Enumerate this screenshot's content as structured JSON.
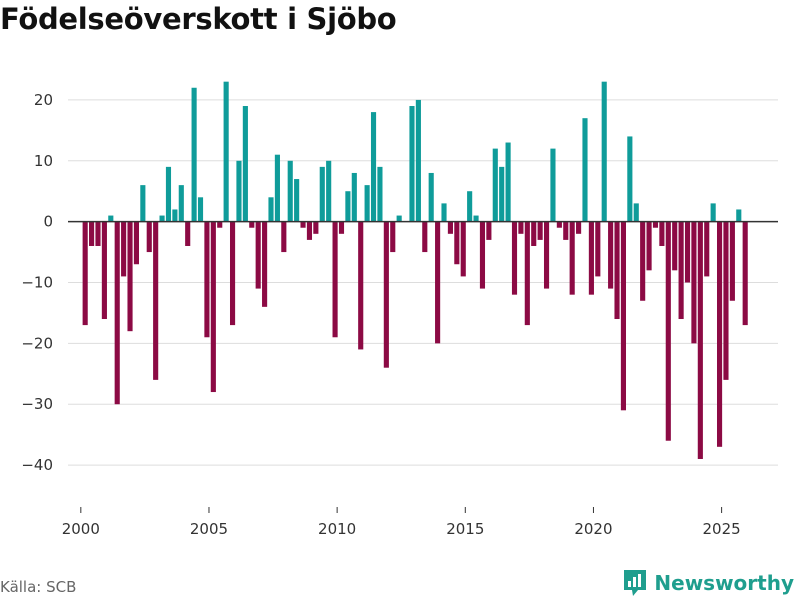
{
  "title": "Födelseöverskott i Sjöbo",
  "source": "Källa: SCB",
  "brand": {
    "name": "Newsworthy",
    "icon": "newsworthy-logo-icon"
  },
  "colors": {
    "positive": "#0f9c9a",
    "negative": "#8c0a44",
    "grid": "#dddddd",
    "zero_line": "#333333",
    "brand": "#1f9e8e"
  },
  "chart_data": {
    "type": "bar",
    "title": "Födelseöverskott i Sjöbo",
    "xlabel": "",
    "ylabel": "",
    "ylim": [
      -45,
      25
    ],
    "y_ticks": [
      20,
      10,
      0,
      -10,
      -20,
      -30,
      -40
    ],
    "y_tick_labels": [
      "20",
      "10",
      "0",
      "−10",
      "−20",
      "−30",
      "−40"
    ],
    "xlim": [
      1999.5,
      2027.2
    ],
    "x_ticks": [
      2000,
      2005,
      2010,
      2015,
      2020,
      2025
    ],
    "x_tick_labels": [
      "2000",
      "2005",
      "2010",
      "2015",
      "2020",
      "2025"
    ],
    "bar_width_years": 0.2,
    "grid": true,
    "x": [
      2000.17,
      2000.42,
      2000.67,
      2000.92,
      2001.17,
      2001.42,
      2001.67,
      2001.92,
      2002.17,
      2002.42,
      2002.67,
      2002.92,
      2003.17,
      2003.42,
      2003.67,
      2003.92,
      2004.17,
      2004.42,
      2004.67,
      2004.92,
      2005.17,
      2005.42,
      2005.67,
      2005.92,
      2006.17,
      2006.42,
      2006.67,
      2006.92,
      2007.17,
      2007.42,
      2007.67,
      2007.92,
      2008.17,
      2008.42,
      2008.67,
      2008.92,
      2009.17,
      2009.42,
      2009.67,
      2009.92,
      2010.17,
      2010.42,
      2010.67,
      2010.92,
      2011.17,
      2011.42,
      2011.67,
      2011.92,
      2012.17,
      2012.42,
      2012.67,
      2012.92,
      2013.17,
      2013.42,
      2013.67,
      2013.92,
      2014.17,
      2014.42,
      2014.67,
      2014.92,
      2015.17,
      2015.42,
      2015.67,
      2015.92,
      2016.17,
      2016.42,
      2016.67,
      2016.92,
      2017.17,
      2017.42,
      2017.67,
      2017.92,
      2018.17,
      2018.42,
      2018.67,
      2018.92,
      2019.17,
      2019.42,
      2019.67,
      2019.92,
      2020.17,
      2020.42,
      2020.67,
      2020.92,
      2021.17,
      2021.42,
      2021.67,
      2021.92,
      2022.17,
      2022.42,
      2022.67,
      2022.92,
      2023.17,
      2023.42,
      2023.67,
      2023.92,
      2024.17,
      2024.42,
      2024.67,
      2024.92,
      2025.17,
      2025.42,
      2025.67,
      2025.92
    ],
    "values": [
      -17,
      -4,
      -4,
      -16,
      1,
      -30,
      -9,
      -18,
      -7,
      6,
      -5,
      -26,
      1,
      9,
      2,
      6,
      -4,
      22,
      4,
      -19,
      -28,
      -1,
      23,
      -17,
      10,
      19,
      -1,
      -11,
      -14,
      4,
      11,
      -5,
      10,
      7,
      -1,
      -3,
      -2,
      9,
      10,
      -19,
      -2,
      5,
      8,
      -21,
      6,
      18,
      9,
      -24,
      -5,
      1,
      0,
      19,
      20,
      -5,
      8,
      -20,
      3,
      -2,
      -7,
      -9,
      5,
      1,
      -11,
      -3,
      12,
      9,
      13,
      -12,
      -2,
      -17,
      -4,
      -3,
      -11,
      12,
      -1,
      -3,
      -12,
      -2,
      17,
      -12,
      -9,
      23,
      -11,
      -16,
      -31,
      14,
      3,
      -13,
      -8,
      -1,
      -4,
      -36,
      -8,
      -16,
      -10,
      -20,
      -39,
      -9,
      3,
      -37,
      -26,
      -13,
      2,
      -17
    ]
  }
}
